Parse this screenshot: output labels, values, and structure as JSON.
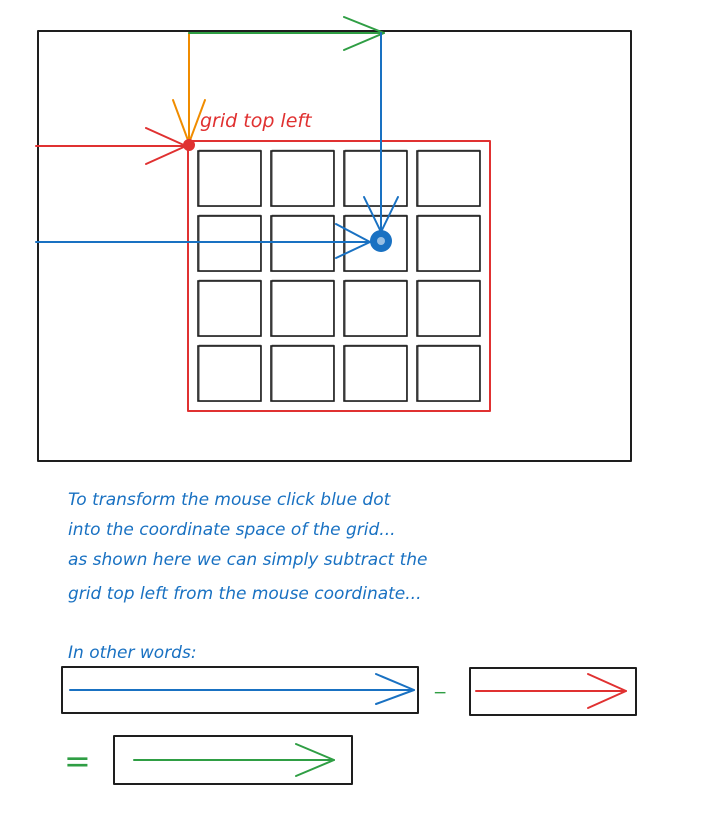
{
  "colors": {
    "frame": "#1e1e1e",
    "grid": "#e03131",
    "blue": "#1971c2",
    "green": "#2f9e44",
    "orange": "#f08c00",
    "text_blue": "#1971c2",
    "text_red": "#e03131"
  },
  "labels": {
    "grid_top_left": "grid top left"
  },
  "explanation": {
    "line1": "To transform the mouse click blue dot",
    "line2": "into the coordinate space of the grid...",
    "line3": "as shown here we can simply subtract the",
    "line4": "grid top left from the mouse coordinate..."
  },
  "equation": {
    "intro": "In other words:",
    "minus": "−",
    "equals": "="
  },
  "grid": {
    "rows": 4,
    "cols": 4
  },
  "icons": {
    "mouse_click": "blue-dot-icon",
    "grid_origin": "red-dot-icon"
  }
}
